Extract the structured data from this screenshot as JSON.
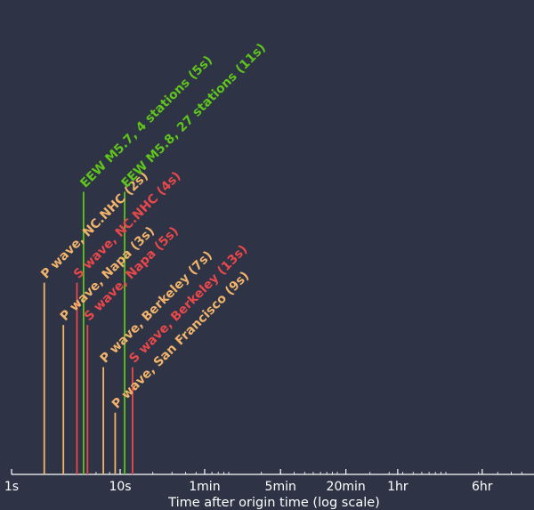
{
  "chart_data": {
    "type": "timeline",
    "xlabel": "Time after origin time (log scale)",
    "x_scale": "log",
    "x_range_seconds": [
      1,
      50000
    ],
    "tick_labels": [
      {
        "label": "1s",
        "seconds": 1
      },
      {
        "label": "10s",
        "seconds": 10
      },
      {
        "label": "1min",
        "seconds": 60
      },
      {
        "label": "5min",
        "seconds": 300
      },
      {
        "label": "20min",
        "seconds": 1200
      },
      {
        "label": "1hr",
        "seconds": 3600
      },
      {
        "label": "6hr",
        "seconds": 21600
      }
    ],
    "events": [
      {
        "label": "P wave, NC.NHC (2s)",
        "seconds": 2,
        "level": 0.59,
        "color": "#f2b36b"
      },
      {
        "label": "P wave, Napa (3s)",
        "seconds": 3,
        "level": 0.46,
        "color": "#f2b36b"
      },
      {
        "label": "S wave, NC.NHC (4s)",
        "seconds": 4,
        "level": 0.59,
        "color": "#e9484b"
      },
      {
        "label": "EEW M5.7, 4 stations (5s)",
        "seconds": 4.6,
        "level": 0.87,
        "color": "#5fc41c"
      },
      {
        "label": "S wave, Napa (5s)",
        "seconds": 5,
        "level": 0.46,
        "color": "#e9484b"
      },
      {
        "label": "P wave, Berkeley (7s)",
        "seconds": 7,
        "level": 0.33,
        "color": "#f2b36b"
      },
      {
        "label": "P wave, San Francisco (9s)",
        "seconds": 9,
        "level": 0.19,
        "color": "#f2b36b"
      },
      {
        "label": "EEW M5.8, 27 stations (11s)",
        "seconds": 11,
        "level": 0.87,
        "color": "#5fc41c"
      },
      {
        "label": "S wave, Berkeley (13s)",
        "seconds": 13,
        "level": 0.33,
        "color": "#e9484b"
      }
    ],
    "colors": {
      "background": "#2e3445",
      "axis": "#ffffff",
      "p_wave": "#f2b36b",
      "s_wave": "#e9484b",
      "eew": "#5fc41c"
    }
  }
}
